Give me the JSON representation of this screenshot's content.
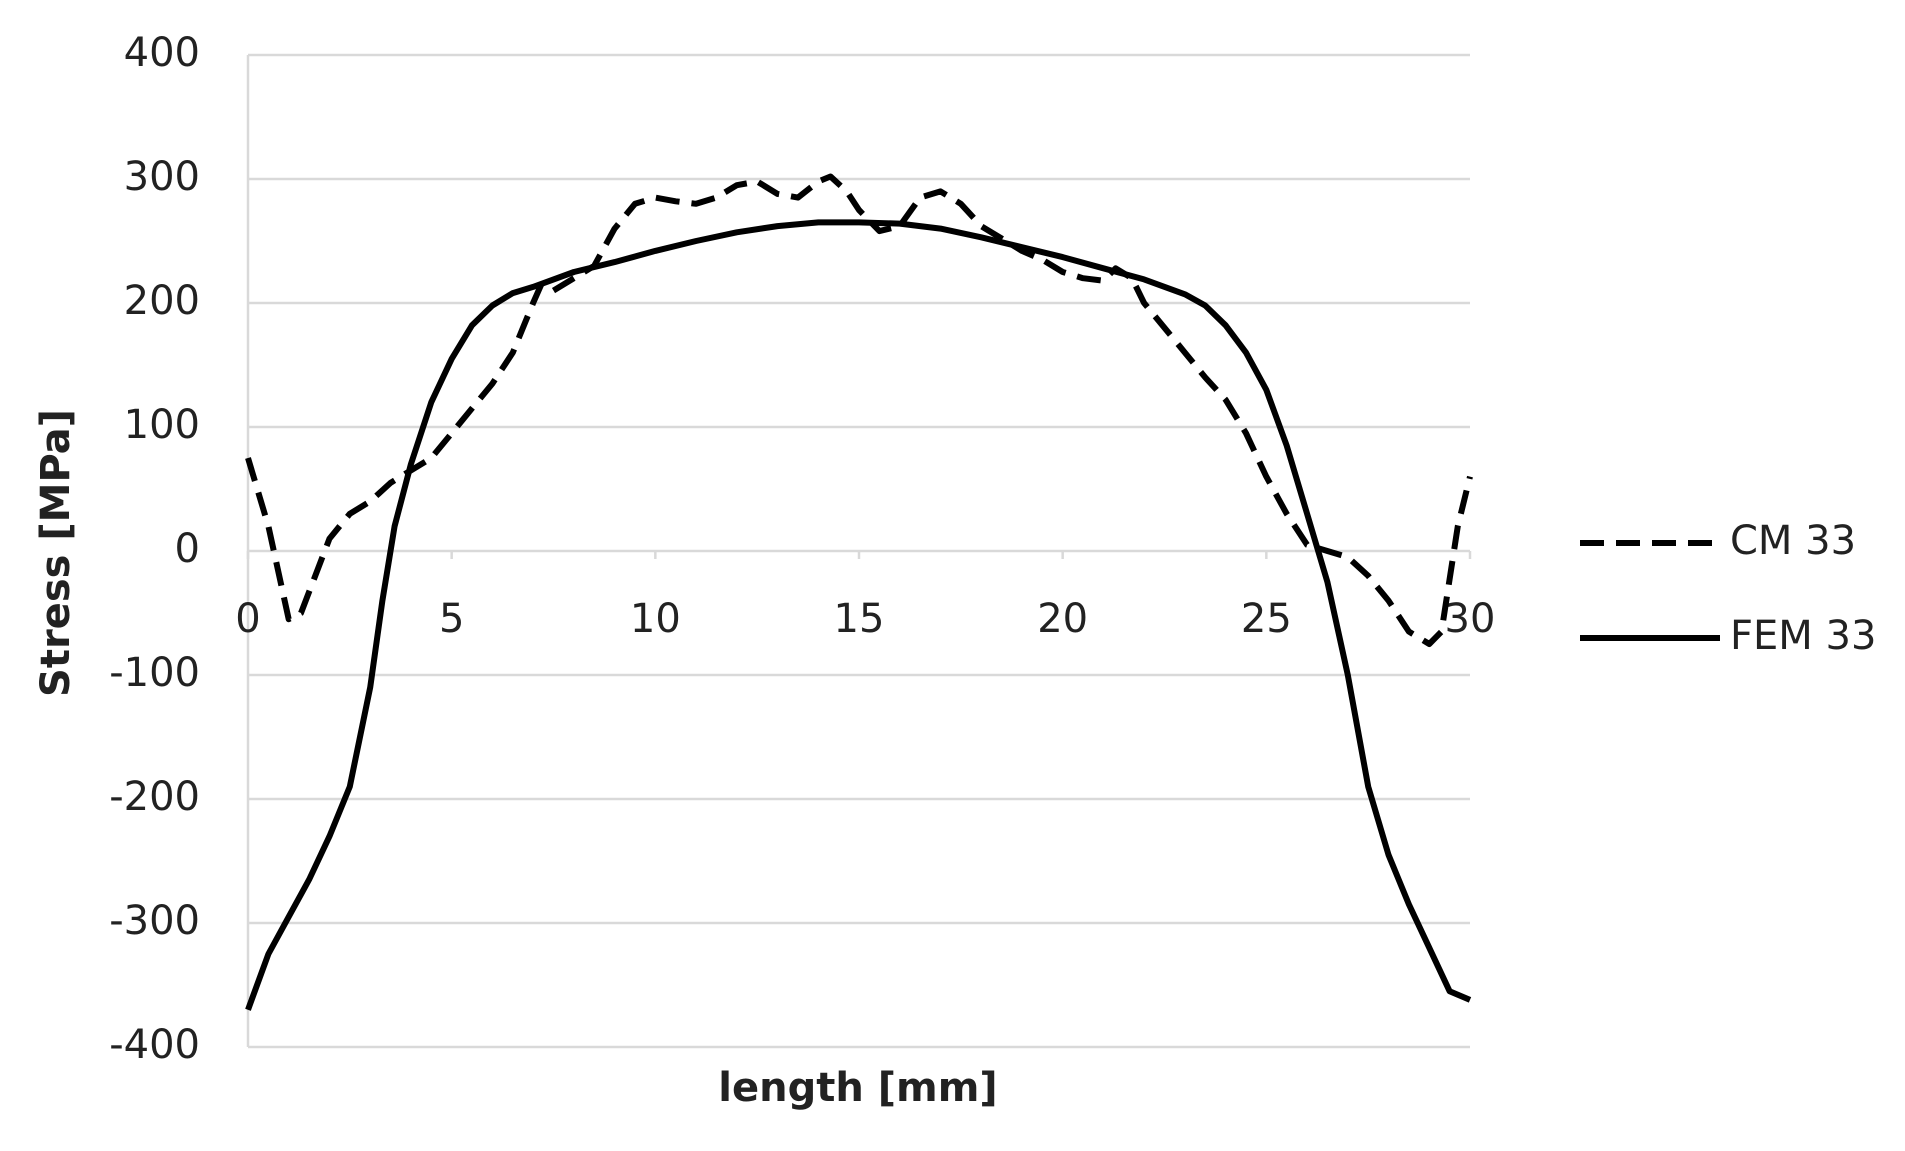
{
  "chart_data": {
    "type": "line",
    "xlabel": "length [mm]",
    "ylabel": "Stress [MPa]",
    "xlim": [
      0,
      30
    ],
    "xticks": [
      0,
      5,
      10,
      15,
      20,
      25,
      30
    ],
    "ylim": [
      -400,
      400
    ],
    "yticks": [
      -400,
      -300,
      -200,
      -100,
      0,
      100,
      200,
      300,
      400
    ],
    "grid": true,
    "legend": "right",
    "series": [
      {
        "name": "CM 33",
        "color": "#000000",
        "style": "dashed",
        "x": [
          0,
          0.5,
          1,
          1.3,
          2,
          2.5,
          3,
          3.5,
          4,
          4.5,
          5,
          5.5,
          6,
          6.5,
          7,
          7.2,
          7.5,
          8,
          8.5,
          9,
          9.5,
          10,
          10.5,
          11,
          11.5,
          12,
          12.5,
          13,
          13.5,
          14,
          14.3,
          14.7,
          15,
          15.5,
          16,
          16.5,
          17,
          17.5,
          18,
          18.5,
          19,
          19.5,
          20,
          20.5,
          21,
          21.3,
          21.7,
          22,
          22.5,
          23,
          23.5,
          24,
          24.5,
          25,
          25.5,
          26,
          26.5,
          27,
          27.5,
          28,
          28.5,
          29,
          29.3,
          29.7,
          30
        ],
        "values": [
          75,
          20,
          -55,
          -50,
          10,
          30,
          40,
          55,
          65,
          75,
          95,
          115,
          135,
          160,
          200,
          215,
          210,
          220,
          230,
          260,
          280,
          285,
          282,
          280,
          285,
          295,
          298,
          288,
          285,
          298,
          302,
          290,
          275,
          258,
          262,
          285,
          290,
          280,
          262,
          252,
          242,
          235,
          225,
          220,
          218,
          228,
          220,
          200,
          180,
          160,
          140,
          122,
          95,
          60,
          30,
          5,
          0,
          -5,
          -20,
          -40,
          -65,
          -75,
          -65,
          20,
          60
        ]
      },
      {
        "name": "FEM 33",
        "color": "#000000",
        "style": "solid",
        "x": [
          0,
          0.5,
          1,
          1.5,
          2,
          2.5,
          3,
          3.3,
          3.6,
          4,
          4.5,
          5,
          5.5,
          6,
          6.5,
          7,
          8,
          9,
          10,
          11,
          12,
          13,
          14,
          15,
          16,
          17,
          18,
          19,
          20,
          21,
          22,
          23,
          23.5,
          24,
          24.5,
          25,
          25.5,
          26,
          26.5,
          27,
          27.5,
          28,
          28.5,
          29,
          29.5,
          30
        ],
        "values": [
          -370,
          -325,
          -295,
          -265,
          -230,
          -190,
          -110,
          -40,
          20,
          70,
          120,
          155,
          182,
          198,
          208,
          213,
          225,
          233,
          242,
          250,
          257,
          262,
          265,
          265,
          264,
          260,
          253,
          245,
          237,
          228,
          219,
          207,
          198,
          182,
          160,
          130,
          85,
          30,
          -25,
          -100,
          -190,
          -245,
          -285,
          -320,
          -355,
          -362
        ]
      }
    ]
  }
}
